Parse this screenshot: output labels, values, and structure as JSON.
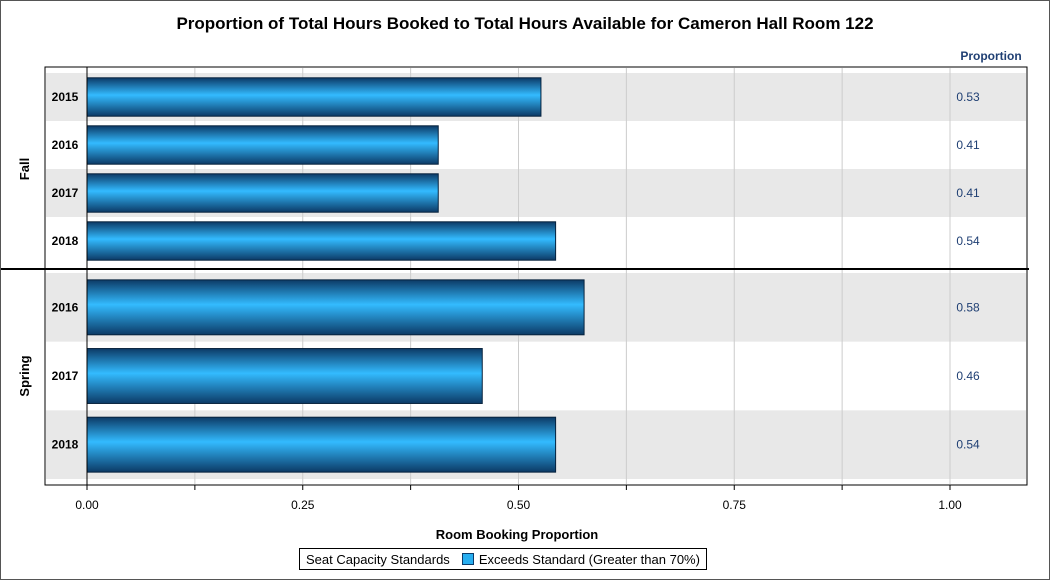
{
  "chart_data": {
    "type": "bar",
    "orientation": "horizontal",
    "title": "Proportion of Total Hours Booked to Total Hours Available for Cameron Hall Room 122",
    "xlabel": "Room Booking Proportion",
    "value_column_header": "Proportion",
    "xlim": [
      0,
      1.1
    ],
    "xticks": [
      {
        "value": 0.0,
        "label": "0.00"
      },
      {
        "value": 0.25,
        "label": "0.25"
      },
      {
        "value": 0.5,
        "label": "0.50"
      },
      {
        "value": 0.75,
        "label": "0.75"
      },
      {
        "value": 1.0,
        "label": "1.00"
      }
    ],
    "minor_ticks": [
      0.125,
      0.375,
      0.625,
      0.875
    ],
    "groups": [
      {
        "name": "Fall",
        "items": [
          {
            "category": "2015",
            "value": 0.526,
            "label": "0.53"
          },
          {
            "category": "2016",
            "value": 0.407,
            "label": "0.41"
          },
          {
            "category": "2017",
            "value": 0.407,
            "label": "0.41"
          },
          {
            "category": "2018",
            "value": 0.543,
            "label": "0.54"
          }
        ]
      },
      {
        "name": "Spring",
        "items": [
          {
            "category": "2016",
            "value": 0.576,
            "label": "0.58"
          },
          {
            "category": "2017",
            "value": 0.458,
            "label": "0.46"
          },
          {
            "category": "2018",
            "value": 0.543,
            "label": "0.54"
          }
        ]
      }
    ],
    "legend": {
      "title": "Seat Capacity Standards",
      "entries": [
        {
          "label": "Exceeds Standard (Greater than 70%)",
          "color": "#27aef0"
        }
      ],
      "position": "bottom-center"
    },
    "grid": true,
    "colors": {
      "bar_light": "#33bbff",
      "bar_dark": "#0c3a66",
      "bar_edge": "#06223d",
      "band": "#e8e8e8",
      "value_label": "#1f3f73",
      "grid": "#cccccc"
    }
  }
}
